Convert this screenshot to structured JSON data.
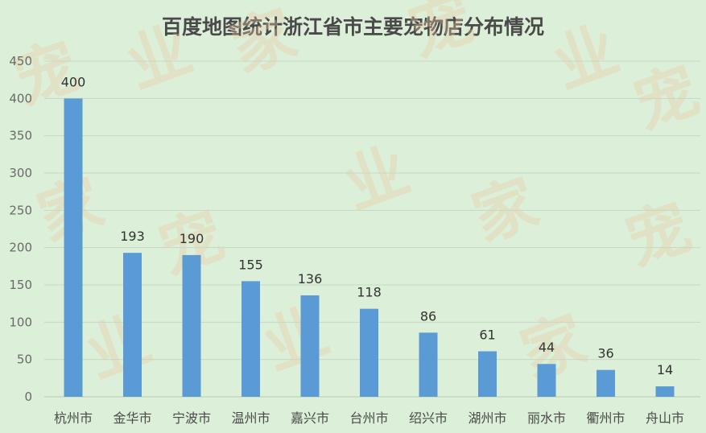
{
  "chart_data": {
    "type": "bar",
    "title": "百度地图统计浙江省市主要宠物店分布情况",
    "xlabel": "",
    "ylabel": "",
    "ylim": [
      0,
      450
    ],
    "yticks": [
      0,
      50,
      100,
      150,
      200,
      250,
      300,
      350,
      400,
      450
    ],
    "grid": true,
    "legend": "none",
    "categories": [
      "杭州市",
      "金华市",
      "宁波市",
      "温州市",
      "嘉兴市",
      "台州市",
      "绍兴市",
      "湖州市",
      "丽水市",
      "衢州市",
      "舟山市"
    ],
    "values": [
      400,
      193,
      190,
      155,
      136,
      118,
      86,
      61,
      44,
      36,
      14
    ],
    "bar_color": "#5b9bd5"
  },
  "watermark": {
    "text": "宠业家"
  }
}
